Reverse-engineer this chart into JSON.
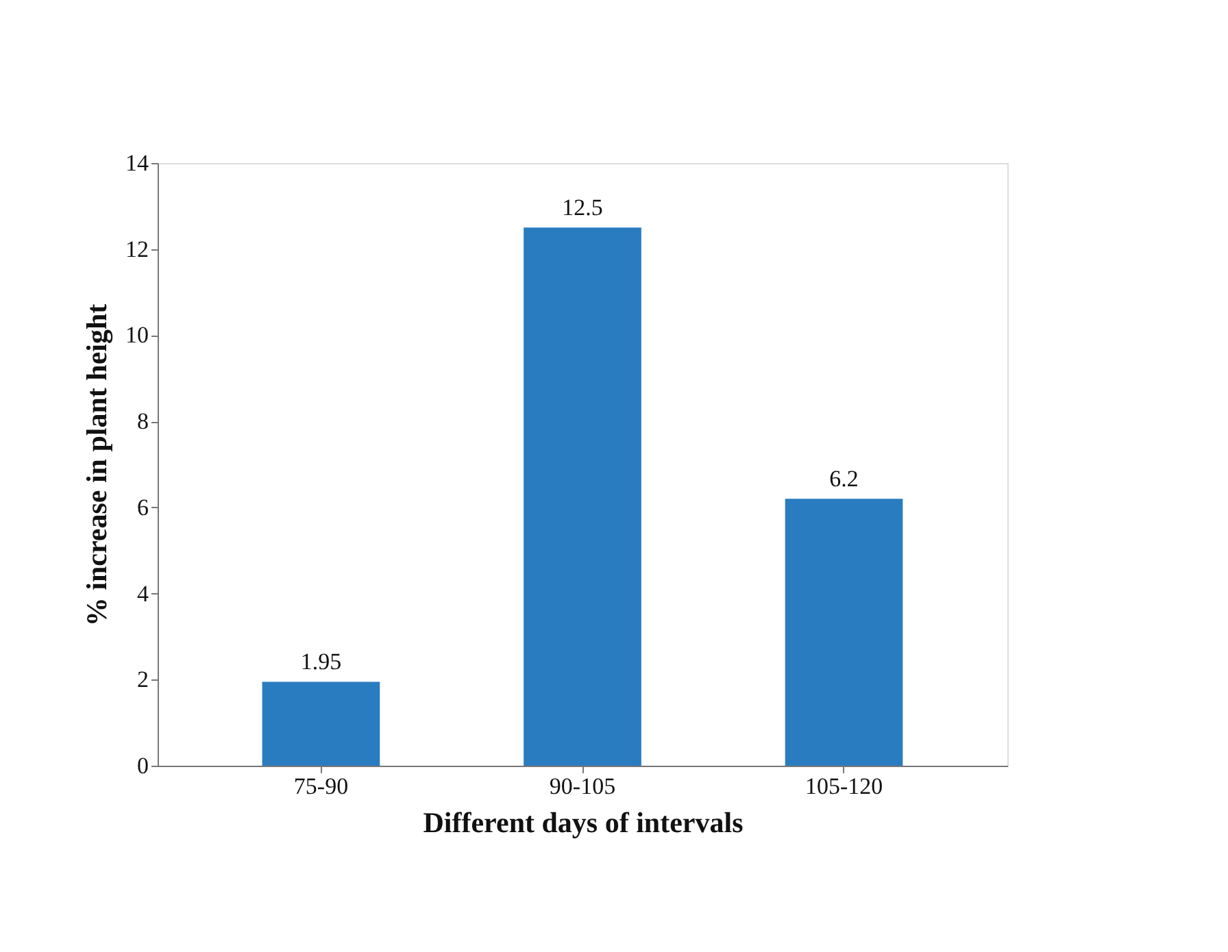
{
  "chart_data": {
    "type": "bar",
    "xlabel": "Different days of intervals",
    "ylabel": "% increase in plant height",
    "categories": [
      "75-90",
      "90-105",
      "105-120"
    ],
    "values": [
      1.95,
      12.5,
      6.2
    ],
    "color": "#2a7cc0",
    "ylim": [
      0,
      14
    ],
    "yticks": [
      0,
      2,
      4,
      6,
      8,
      10,
      12,
      14
    ],
    "grid": false,
    "data_labels": true
  }
}
